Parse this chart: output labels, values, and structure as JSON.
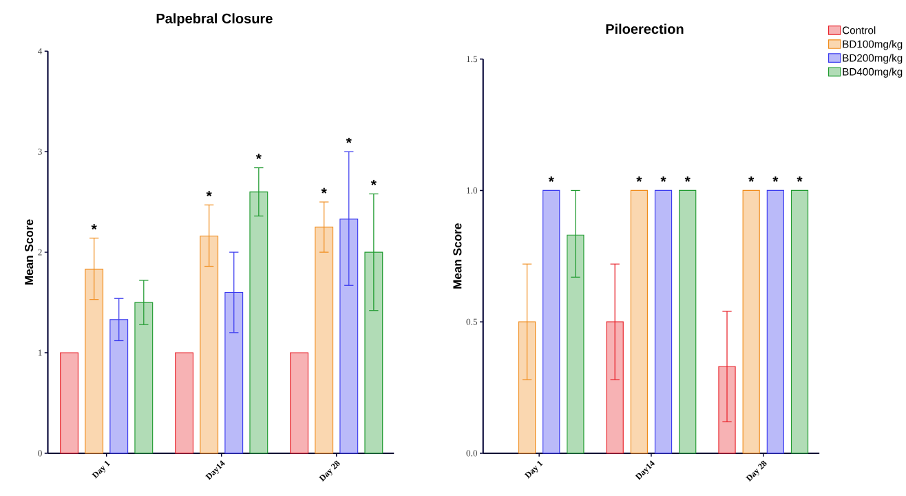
{
  "chart_data": [
    {
      "type": "bar",
      "title": "Palpebral Closure",
      "ylabel": "Mean Score",
      "categories": [
        "Day 1",
        "Day14",
        "Day 28"
      ],
      "ylim": [
        0,
        4
      ],
      "yticks": [
        0,
        1,
        2,
        3,
        4
      ],
      "grid": false,
      "legend": false,
      "series": [
        {
          "color": "#e8222a",
          "values": [
            1,
            1,
            1
          ]
        },
        {
          "color": "#f08c1c",
          "values": [
            1.83,
            2.16,
            2.25
          ],
          "errors": [
            [
              1.53,
              2.14
            ],
            [
              1.86,
              2.47
            ],
            [
              2.0,
              2.5
            ]
          ]
        },
        {
          "color": "#3a3aef",
          "values": [
            1.33,
            1.6,
            2.33
          ],
          "errors": [
            [
              1.12,
              1.54
            ],
            [
              1.2,
              2.0
            ],
            [
              1.67,
              3.0
            ]
          ]
        },
        {
          "color": "#1f9a2f",
          "values": [
            1.5,
            2.6,
            2.0
          ],
          "errors": [
            [
              1.28,
              1.72
            ],
            [
              2.36,
              2.84
            ],
            [
              1.42,
              2.58
            ]
          ]
        }
      ],
      "annotations": [
        "*",
        "*",
        "*",
        "*",
        "*",
        "*"
      ]
    },
    {
      "type": "bar",
      "title": "Piloerection",
      "ylabel": "Mean Score",
      "categories": [
        "Day 1",
        "Day14",
        "Day 28"
      ],
      "ylim": [
        0,
        1.5
      ],
      "yticks": [
        {
          "value": 0,
          "label": "0.0"
        },
        {
          "value": 0.5,
          "label": "0.5"
        },
        {
          "value": 1,
          "label": "1.0"
        },
        {
          "value": 1.5,
          "label": "1.5"
        }
      ],
      "grid": false,
      "legend": "top right",
      "series": [
        {
          "name": "Control",
          "color": "#e8222a",
          "values": [
            null,
            0.5,
            0.33
          ],
          "errors": [
            null,
            [
              0.28,
              0.72
            ],
            [
              0.12,
              0.54
            ]
          ]
        },
        {
          "name": "BD100mg/kg",
          "color": "#f08c1c",
          "values": [
            0.5,
            1,
            1
          ],
          "errors": [
            [
              0.28,
              0.72
            ],
            null,
            null
          ]
        },
        {
          "name": "BD200mg/kg",
          "color": "#3a3aef",
          "values": [
            1,
            1,
            1
          ]
        },
        {
          "name": "BD400mg/kg",
          "color": "#1f9a2f",
          "values": [
            0.83,
            1,
            1
          ],
          "errors": [
            [
              0.67,
              1.0
            ],
            null,
            null
          ]
        }
      ],
      "annotations": [
        "*",
        "*",
        "*",
        "*",
        "*",
        "*",
        "*"
      ]
    }
  ]
}
